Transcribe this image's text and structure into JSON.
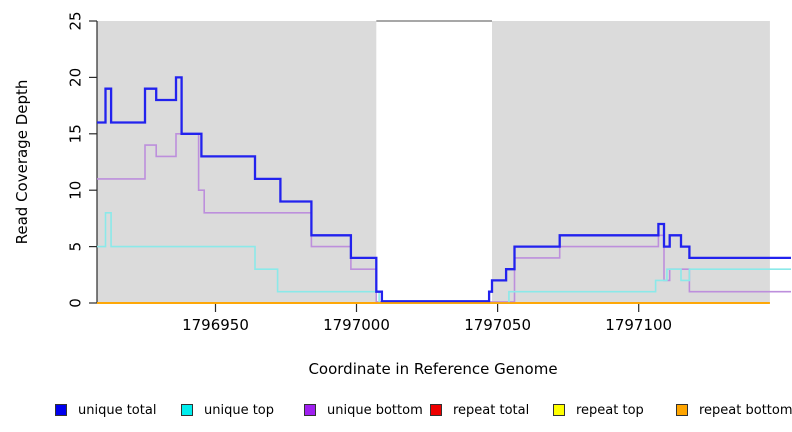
{
  "chart_data": {
    "type": "line",
    "subtype": "step-coverage-plot",
    "title": "",
    "xlabel": "Coordinate in Reference Genome",
    "ylabel": "Read Coverage Depth",
    "xlim": [
      1796908,
      1797154
    ],
    "ylim": [
      0,
      25
    ],
    "grid": false,
    "x_axis": {
      "ticks": [
        1796950,
        1797000,
        1797050,
        1797100
      ]
    },
    "y_axis": {
      "ticks": [
        0,
        5,
        10,
        15,
        20,
        25
      ]
    },
    "background_regions": [
      {
        "from": 1796908,
        "to": 1797007,
        "color": "#DBDBDB"
      },
      {
        "from": 1797048,
        "to": 1797146.5,
        "color": "#DBDBDB"
      }
    ],
    "gap_region": {
      "from": 1797007,
      "to": 1797048,
      "color": "#FFFFFF",
      "top_border_color": "#8A8A8A"
    },
    "series": [
      {
        "name": "repeat total",
        "color": "#EE0000",
        "line_width": 1.5,
        "x_end": 1797146.5,
        "steps": [
          [
            1796908,
            0
          ]
        ]
      },
      {
        "name": "repeat top",
        "color": "#FFFF00",
        "line_width": 1.5,
        "x_end": 1797146.5,
        "steps": [
          [
            1796908,
            0
          ]
        ]
      },
      {
        "name": "unique bottom",
        "color": "#BD8FDC",
        "line_width": 1.6,
        "x_end": 1797154,
        "steps": [
          [
            1796908,
            11
          ],
          [
            1796925,
            14
          ],
          [
            1796929,
            13
          ],
          [
            1796936,
            15
          ],
          [
            1796944,
            10
          ],
          [
            1796946,
            8
          ],
          [
            1796984,
            5
          ],
          [
            1796998,
            3
          ],
          [
            1797007,
            0.1
          ],
          [
            1797056,
            4
          ],
          [
            1797072,
            5
          ],
          [
            1797107,
            6
          ],
          [
            1797109,
            2
          ],
          [
            1797111,
            3
          ],
          [
            1797118,
            1
          ]
        ]
      },
      {
        "name": "unique top",
        "color": "#8BE9E9",
        "line_width": 1.6,
        "x_end": 1797154,
        "steps": [
          [
            1796908,
            5
          ],
          [
            1796911,
            8
          ],
          [
            1796913,
            5
          ],
          [
            1796964,
            3
          ],
          [
            1796972,
            1
          ],
          [
            1797008,
            0
          ],
          [
            1797054,
            1
          ],
          [
            1797106,
            2
          ],
          [
            1797110,
            3
          ],
          [
            1797115,
            2
          ],
          [
            1797118,
            3
          ]
        ]
      },
      {
        "name": "unique total",
        "color": "#2222EE",
        "line_width": 2.3,
        "x_end": 1797154,
        "steps": [
          [
            1796908,
            16
          ],
          [
            1796911,
            19
          ],
          [
            1796913,
            16
          ],
          [
            1796925,
            19
          ],
          [
            1796929,
            18
          ],
          [
            1796936,
            20
          ],
          [
            1796938,
            15
          ],
          [
            1796945,
            13
          ],
          [
            1796964,
            11
          ],
          [
            1796973,
            9
          ],
          [
            1796984,
            6
          ],
          [
            1796998,
            4
          ],
          [
            1797007,
            1
          ],
          [
            1797009,
            0.15
          ],
          [
            1797047,
            1
          ],
          [
            1797048,
            2
          ],
          [
            1797053,
            3
          ],
          [
            1797056,
            5
          ],
          [
            1797072,
            6
          ],
          [
            1797107,
            7
          ],
          [
            1797109,
            5
          ],
          [
            1797111,
            6
          ],
          [
            1797115,
            5
          ],
          [
            1797118,
            4
          ]
        ]
      },
      {
        "name": "repeat bottom",
        "color": "#FFA500",
        "line_width": 1.7,
        "x_end": 1797146.5,
        "steps": [
          [
            1796908,
            0
          ]
        ]
      }
    ],
    "legend": [
      {
        "label": "unique total",
        "color": "#0000EE"
      },
      {
        "label": "unique top",
        "color": "#00EEEE"
      },
      {
        "label": "unique bottom",
        "color": "#A020F0"
      },
      {
        "label": "repeat total",
        "color": "#EE0000"
      },
      {
        "label": "repeat top",
        "color": "#FFFF00"
      },
      {
        "label": "repeat bottom",
        "color": "#FFA500"
      }
    ],
    "legend_position": "bottom"
  }
}
